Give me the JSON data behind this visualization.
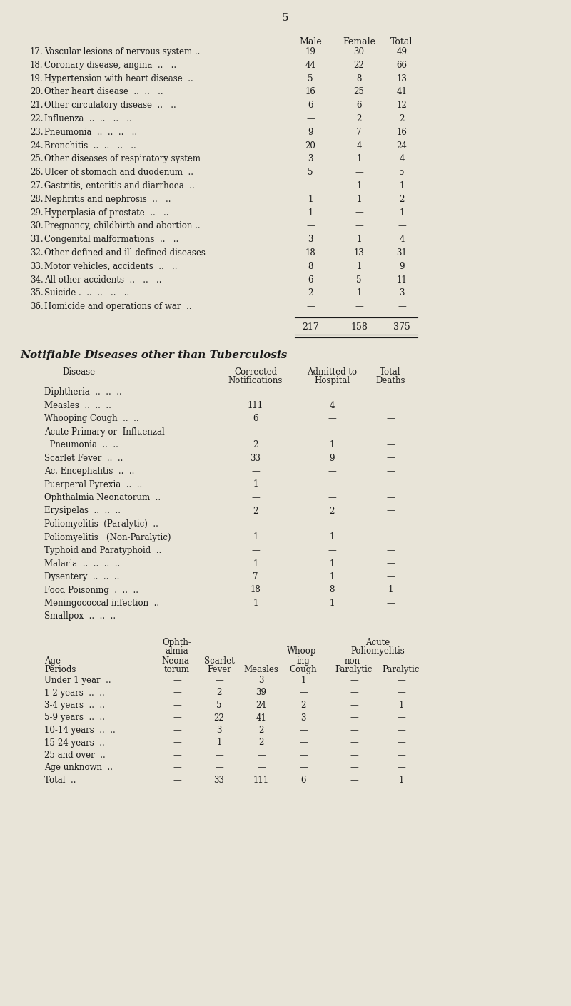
{
  "page_number": "5",
  "bg_color": "#e8e4d8",
  "text_color": "#1a1a1a",
  "section1_header": [
    "Male",
    "Female",
    "Total"
  ],
  "section1_rows": [
    [
      "17.",
      "Vascular lesions of nervous system ..",
      "19",
      "30",
      "49"
    ],
    [
      "18.",
      "Coronary disease, angina  ..   ..",
      "44",
      "22",
      "66"
    ],
    [
      "19.",
      "Hypertension with heart disease  ..",
      "5",
      "8",
      "13"
    ],
    [
      "20.",
      "Other heart disease  ..  ..   ..",
      "16",
      "25",
      "41"
    ],
    [
      "21.",
      "Other circulatory disease  ..   ..",
      "6",
      "6",
      "12"
    ],
    [
      "22.",
      "Influenza  ..  ..   ..   ..",
      "—",
      "2",
      "2"
    ],
    [
      "23.",
      "Pneumonia  ..  ..  ..   ..",
      "9",
      "7",
      "16"
    ],
    [
      "24.",
      "Bronchitis  ..  ..   ..   ..",
      "20",
      "4",
      "24"
    ],
    [
      "25.",
      "Other diseases of respiratory system",
      "3",
      "1",
      "4"
    ],
    [
      "26.",
      "Ulcer of stomach and duodenum  ..",
      "5",
      "—",
      "5"
    ],
    [
      "27.",
      "Gastritis, enteritis and diarrhoea  ..",
      "—",
      "1",
      "1"
    ],
    [
      "28.",
      "Nephritis and nephrosis  ..   ..",
      "1",
      "1",
      "2"
    ],
    [
      "29.",
      "Hyperplasia of prostate  ..   ..",
      "1",
      "—",
      "1"
    ],
    [
      "30.",
      "Pregnancy, childbirth and abortion ..",
      "—",
      "—",
      "—"
    ],
    [
      "31.",
      "Congenital malformations  ..   ..",
      "3",
      "1",
      "4"
    ],
    [
      "32.",
      "Other defined and ill-defined diseases",
      "18",
      "13",
      "31"
    ],
    [
      "33.",
      "Motor vehicles, accidents  ..   ..",
      "8",
      "1",
      "9"
    ],
    [
      "34.",
      "All other accidents  ..   ..   ..",
      "6",
      "5",
      "11"
    ],
    [
      "35.",
      "Suicide .  ..  ..   ..   ..",
      "2",
      "1",
      "3"
    ],
    [
      "36.",
      "Homicide and operations of war  ..",
      "—",
      "—",
      "—"
    ]
  ],
  "section1_totals": [
    "217",
    "158",
    "375"
  ],
  "section2_title": "Notifiable Diseases other than Tuberculosis",
  "section2_rows": [
    [
      "Diphtheria  ..  ..  ..",
      "—",
      "—",
      "—"
    ],
    [
      "Measles  ..  ..  ..",
      "111",
      "4",
      "—"
    ],
    [
      "Whooping Cough  ..  ..",
      "6",
      "—",
      "—"
    ],
    [
      "Acute Primary or  Influenzal",
      "",
      "",
      ""
    ],
    [
      "  Pneumonia  ..  ..",
      "2",
      "1",
      "—"
    ],
    [
      "Scarlet Fever  ..  ..",
      "33",
      "9",
      "—"
    ],
    [
      "Ac. Encephalitis  ..  ..",
      "—",
      "—",
      "—"
    ],
    [
      "Puerperal Pyrexia  ..  ..",
      "1",
      "—",
      "—"
    ],
    [
      "Ophthalmia Neonatorum  ..",
      "—",
      "—",
      "—"
    ],
    [
      "Erysipelas  ..  ..  ..",
      "2",
      "2",
      "—"
    ],
    [
      "Poliomyelitis  (Paralytic)  ..",
      "—",
      "—",
      "—"
    ],
    [
      "Poliomyelitis   (Non-Paralytic)",
      "1",
      "1",
      "—"
    ],
    [
      "Typhoid and Paratyphoid  ..",
      "—",
      "—",
      "—"
    ],
    [
      "Malaria  ..  ..  ..  ..",
      "1",
      "1",
      "—"
    ],
    [
      "Dysentery  ..  ..  ..",
      "7",
      "1",
      "—"
    ],
    [
      "Food Poisoning  .  ..  ..",
      "18",
      "8",
      "1"
    ],
    [
      "Meningococcal infection  ..",
      "1",
      "1",
      "—"
    ],
    [
      "Smallpox  ..  ..  ..",
      "—",
      "—",
      "—"
    ]
  ],
  "section3_rows": [
    [
      "Under 1 year  ..",
      "—",
      "—",
      "3",
      "1",
      "—",
      "—"
    ],
    [
      "1-2 years  ..  ..",
      "—",
      "2",
      "39",
      "—",
      "—",
      "—"
    ],
    [
      "3-4 years  ..  ..",
      "—",
      "5",
      "24",
      "2",
      "—",
      "1"
    ],
    [
      "5-9 years  ..  ..",
      "—",
      "22",
      "41",
      "3",
      "—",
      "—"
    ],
    [
      "10-14 years  ..  ..",
      "—",
      "3",
      "2",
      "—",
      "—",
      "—"
    ],
    [
      "15-24 years  ..",
      "—",
      "1",
      "2",
      "—",
      "—",
      "—"
    ],
    [
      "25 and over  ..",
      "—",
      "—",
      "—",
      "—",
      "—",
      "—"
    ],
    [
      "Age unknown  ..",
      "—",
      "—",
      "—",
      "—",
      "—",
      "—"
    ],
    [
      "Total  ..",
      "—",
      "33",
      "111",
      "6",
      "—",
      "1"
    ]
  ]
}
